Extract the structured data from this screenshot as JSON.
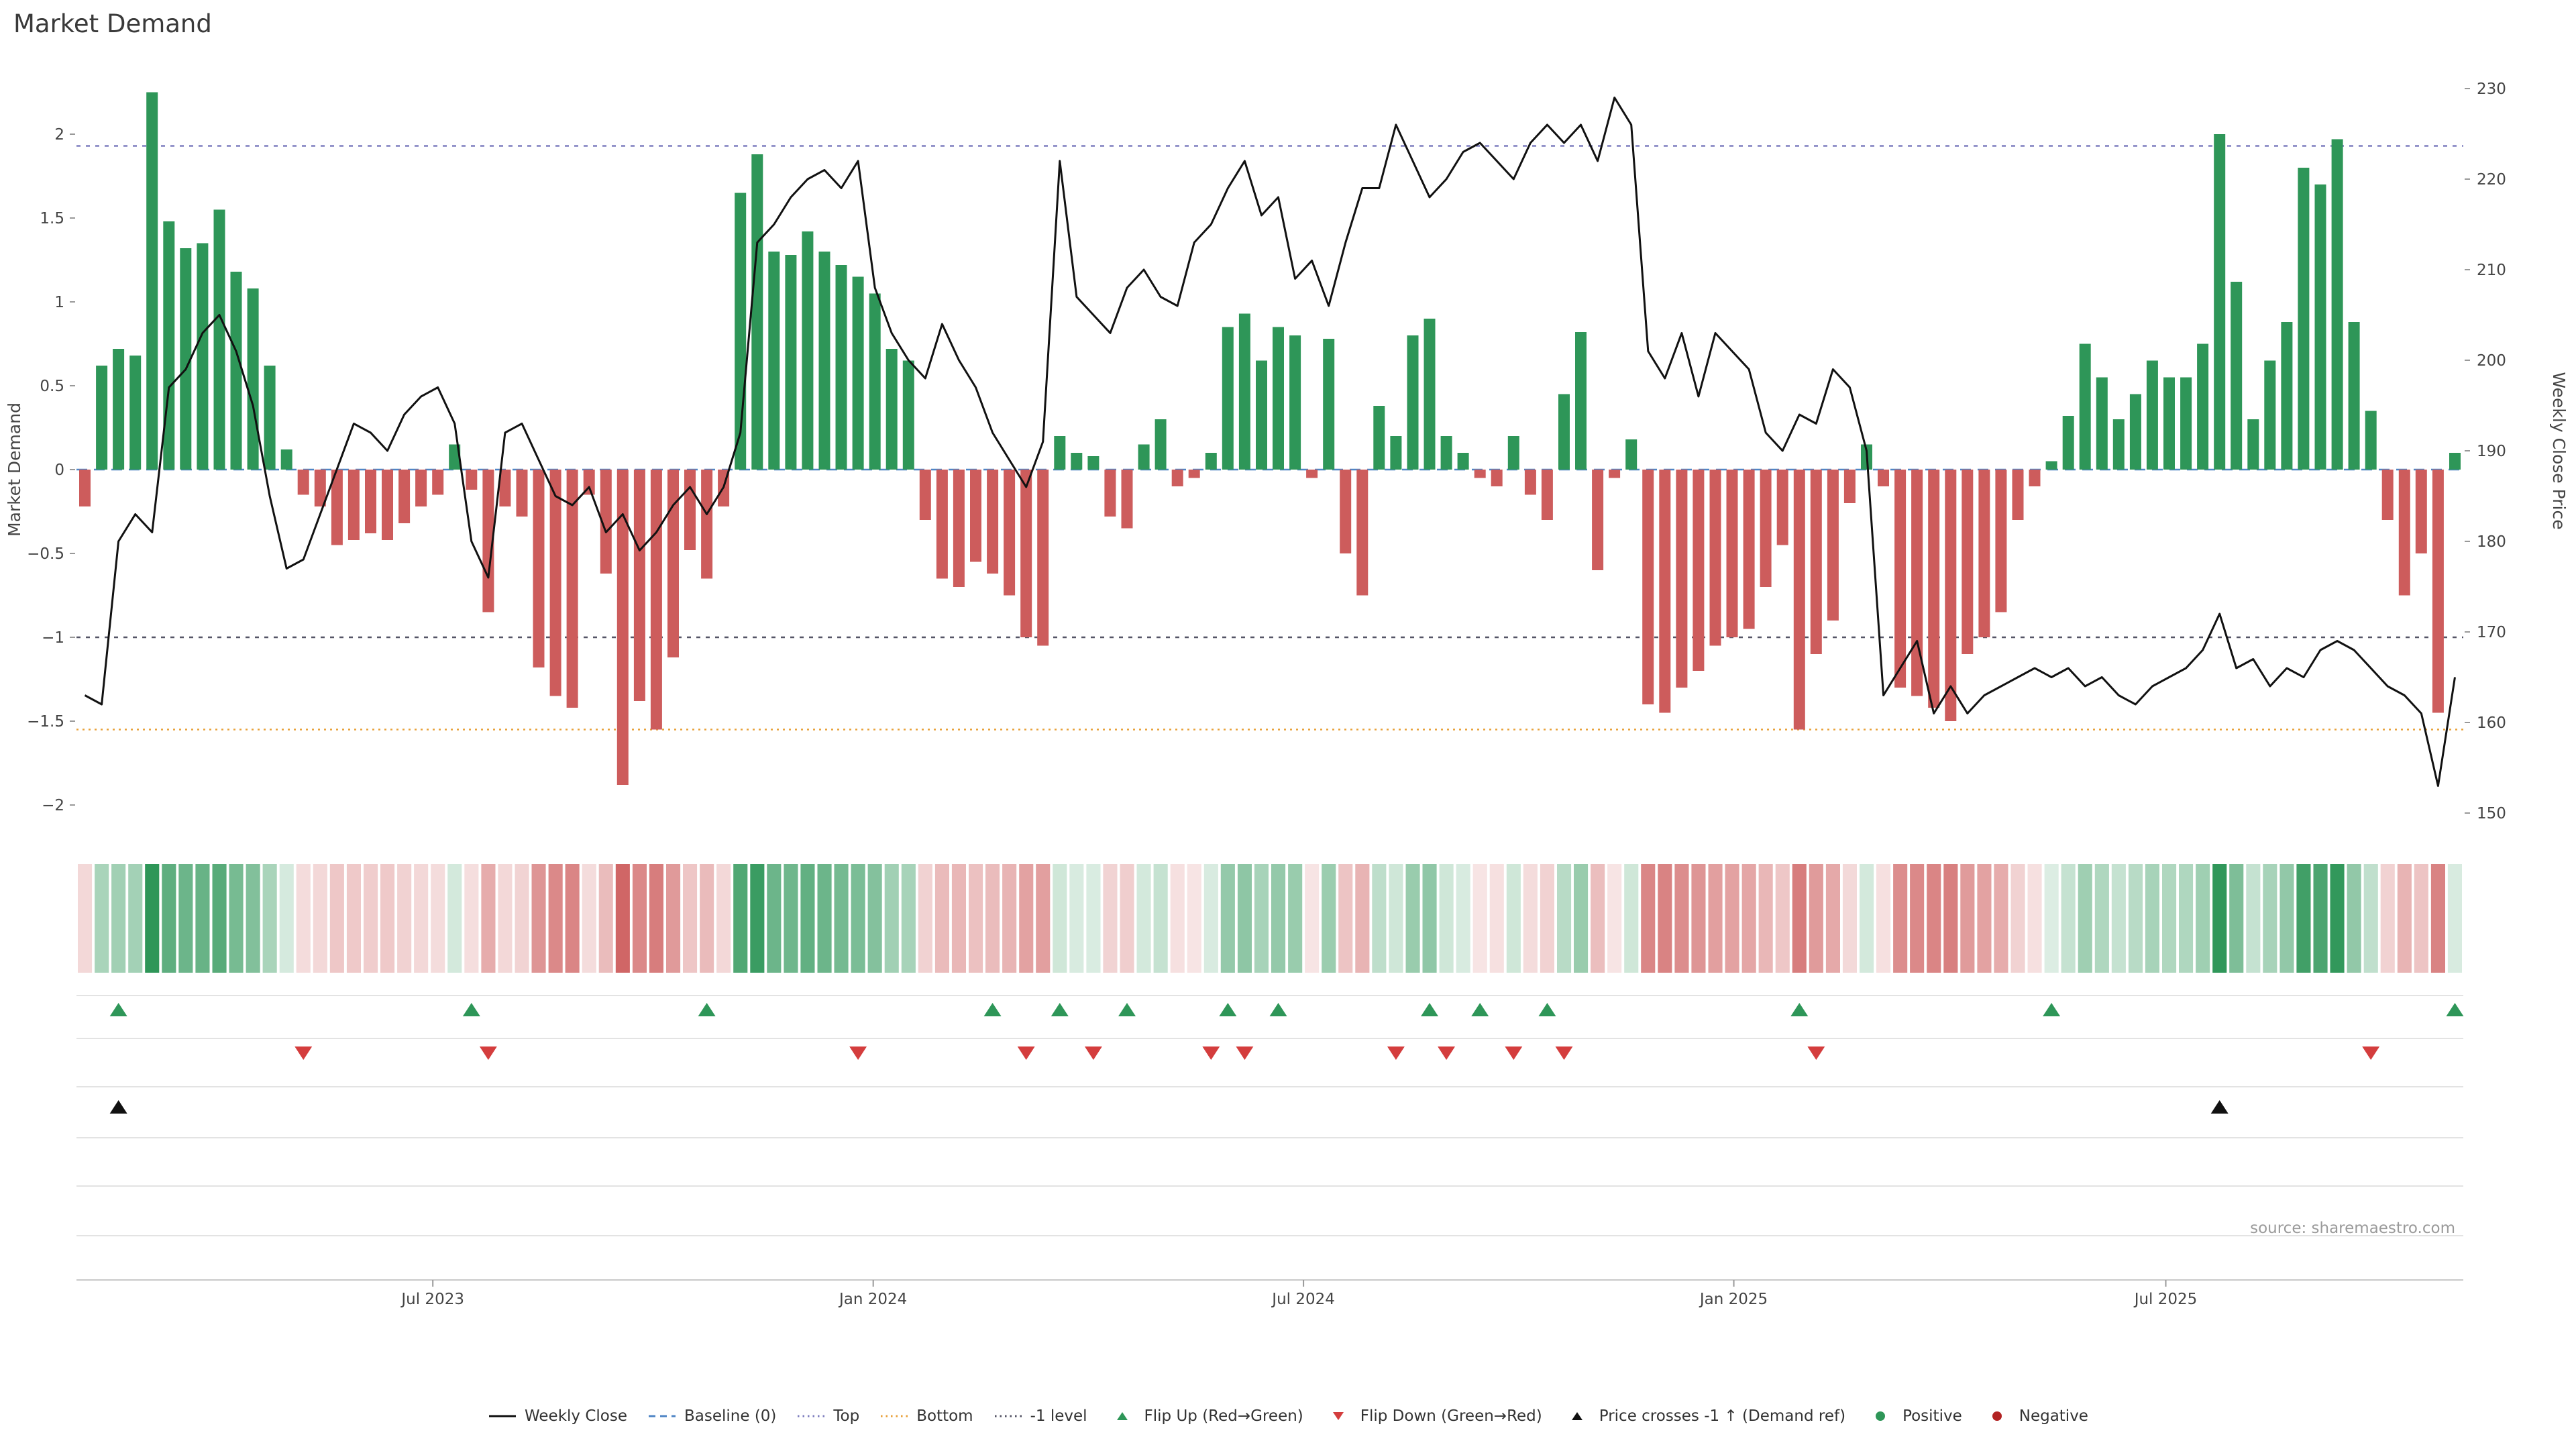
{
  "title": "Market Demand",
  "source": "source: sharemaestro.com",
  "colors": {
    "positive": "#2e9658",
    "negative": "#cd5c5c",
    "flip_up": "#2e9658",
    "flip_down": "#d43d3d",
    "price_line": "#111111",
    "baseline": "#4f86c6",
    "top_line": "#7f7fbf",
    "bottom_line": "#e9a23b",
    "minus1_line": "#555566",
    "negative_dot": "#b22222"
  },
  "chart_data": {
    "type": "bar",
    "combo": "weekly demand bars + weekly close price line + signal heatmap strip + flip marker rows",
    "x_unit": "week",
    "x_ticks": [
      {
        "week": 20.7,
        "label": "Jul 2023"
      },
      {
        "week": 46.9,
        "label": "Jan 2024"
      },
      {
        "week": 72.5,
        "label": "Jul 2024"
      },
      {
        "week": 98.1,
        "label": "Jan 2025"
      },
      {
        "week": 123.8,
        "label": "Jul 2025"
      }
    ],
    "left_axis": {
      "label": "Market Demand",
      "tick_values": [
        2,
        1.5,
        1,
        0.5,
        0,
        -0.5,
        -1,
        -1.5,
        -2
      ],
      "tick_labels": [
        "2",
        "1.5",
        "1",
        "0.5",
        "0",
        "−0.5",
        "−1",
        "−1.5",
        "−2"
      ],
      "range": [
        -2.3,
        2.45
      ]
    },
    "right_axis": {
      "label": "Weekly Close Price",
      "tick_values": [
        230,
        220,
        210,
        200,
        190,
        180,
        170,
        160,
        150
      ],
      "tick_labels": [
        "230",
        "220",
        "210",
        "200",
        "190",
        "180",
        "170",
        "160",
        "150"
      ],
      "range": [
        148,
        231
      ]
    },
    "series": [
      {
        "name": "Market Demand",
        "kind": "bar",
        "axis": "left",
        "values": [
          -0.22,
          0.62,
          0.72,
          0.68,
          2.25,
          1.48,
          1.32,
          1.35,
          1.55,
          1.18,
          1.08,
          0.62,
          0.12,
          -0.15,
          -0.22,
          -0.45,
          -0.42,
          -0.38,
          -0.42,
          -0.32,
          -0.22,
          -0.15,
          0.15,
          -0.12,
          -0.85,
          -0.22,
          -0.28,
          -1.18,
          -1.35,
          -1.42,
          -0.15,
          -0.62,
          -1.88,
          -1.38,
          -1.55,
          -1.12,
          -0.48,
          -0.65,
          -0.22,
          1.65,
          1.88,
          1.3,
          1.28,
          1.42,
          1.3,
          1.22,
          1.15,
          1.05,
          0.72,
          0.65,
          -0.3,
          -0.65,
          -0.7,
          -0.55,
          -0.62,
          -0.75,
          -1.0,
          -1.05,
          0.2,
          0.1,
          0.08,
          -0.28,
          -0.35,
          0.15,
          0.3,
          -0.1,
          -0.05,
          0.1,
          0.85,
          0.93,
          0.65,
          0.85,
          0.8,
          -0.05,
          0.78,
          -0.5,
          -0.75,
          0.38,
          0.2,
          0.8,
          0.9,
          0.2,
          0.1,
          -0.05,
          -0.1,
          0.2,
          -0.15,
          -0.3,
          0.45,
          0.82,
          -0.6,
          -0.05,
          0.18,
          -1.4,
          -1.45,
          -1.3,
          -1.2,
          -1.05,
          -1.0,
          -0.95,
          -0.7,
          -0.45,
          -1.55,
          -1.1,
          -0.9,
          -0.2,
          0.15,
          -0.1,
          -1.3,
          -1.35,
          -1.42,
          -1.5,
          -1.1,
          -1.0,
          -0.85,
          -0.3,
          -0.1,
          0.05,
          0.32,
          0.75,
          0.55,
          0.3,
          0.45,
          0.65,
          0.55,
          0.55,
          0.75,
          2.0,
          1.12,
          0.3,
          0.65,
          0.88,
          1.8,
          1.7,
          1.97,
          0.88,
          0.35,
          -0.3,
          -0.75,
          -0.5,
          -1.45,
          0.1
        ]
      },
      {
        "name": "Weekly Close",
        "kind": "line",
        "axis": "right",
        "values": [
          163,
          162,
          180,
          183,
          181,
          197,
          199,
          203,
          205,
          201,
          195,
          185,
          177,
          178,
          183,
          188,
          193,
          192,
          190,
          194,
          196,
          197,
          193,
          180,
          176,
          192,
          193,
          189,
          185,
          184,
          186,
          181,
          183,
          179,
          181,
          184,
          186,
          183,
          186,
          192,
          213,
          215,
          218,
          220,
          221,
          219,
          222,
          208,
          203,
          200,
          198,
          204,
          200,
          197,
          192,
          189,
          186,
          191,
          222,
          207,
          205,
          203,
          208,
          210,
          207,
          206,
          213,
          215,
          219,
          222,
          216,
          218,
          209,
          211,
          206,
          213,
          219,
          219,
          226,
          222,
          218,
          220,
          223,
          224,
          222,
          220,
          224,
          226,
          224,
          226,
          222,
          229,
          226,
          201,
          198,
          203,
          196,
          203,
          201,
          199,
          192,
          190,
          194,
          193,
          199,
          197,
          190,
          163,
          166,
          169,
          161,
          164,
          161,
          163,
          164,
          165,
          166,
          165,
          166,
          164,
          165,
          163,
          162,
          164,
          165,
          166,
          168,
          172,
          166,
          167,
          164,
          166,
          165,
          168,
          169,
          168,
          166,
          164,
          163,
          161,
          153,
          165
        ]
      }
    ],
    "reference_lines": [
      {
        "name": "Top",
        "value": 1.93,
        "color": "#7f7fbf",
        "dash": "6 8"
      },
      {
        "name": "Baseline (0)",
        "value": 0,
        "color": "#4f86c6",
        "dash": "16 10"
      },
      {
        "name": "-1 level",
        "value": -1,
        "color": "#555566",
        "dash": "6 8"
      },
      {
        "name": "Bottom",
        "value": -1.55,
        "color": "#e9a23b",
        "dash": "3 6"
      }
    ],
    "markers": {
      "flip_up": {
        "label": "Flip Up (Red→Green)",
        "weeks": [
          2,
          23,
          37,
          54,
          58,
          62,
          68,
          71,
          80,
          83,
          87,
          102,
          117,
          141
        ]
      },
      "flip_down": {
        "label": "Flip Down (Green→Red)",
        "weeks": [
          13,
          24,
          46,
          56,
          60,
          67,
          69,
          78,
          81,
          85,
          88,
          103,
          136
        ]
      },
      "price_cross": {
        "label": "Price crosses -1 ↑ (Demand ref)",
        "weeks": [
          2,
          127
        ]
      }
    },
    "heatmap": {
      "derived_from": "Market Demand values (sign = hue, magnitude = intensity)",
      "positive_color": "#2e9658",
      "negative_color": "#cd5c5c"
    }
  },
  "legend": [
    {
      "label": "Weekly Close",
      "swatch": "solid-line",
      "color": "#111111"
    },
    {
      "label": "Baseline (0)",
      "swatch": "dashed-line",
      "color": "#4f86c6"
    },
    {
      "label": "Top",
      "swatch": "dotted-line",
      "color": "#7f7fbf"
    },
    {
      "label": "Bottom",
      "swatch": "dotted-line",
      "color": "#e9a23b"
    },
    {
      "label": "-1 level",
      "swatch": "dotted-line",
      "color": "#555566"
    },
    {
      "label": "Flip Up (Red→Green)",
      "swatch": "triangle-up",
      "color": "#2e9658"
    },
    {
      "label": "Flip Down (Green→Red)",
      "swatch": "triangle-down",
      "color": "#d43d3d"
    },
    {
      "label": "Price crosses -1 ↑ (Demand ref)",
      "swatch": "triangle-up",
      "color": "#111111"
    },
    {
      "label": "Positive",
      "swatch": "circle",
      "color": "#2e9658"
    },
    {
      "label": "Negative",
      "swatch": "circle",
      "color": "#b22222"
    }
  ]
}
